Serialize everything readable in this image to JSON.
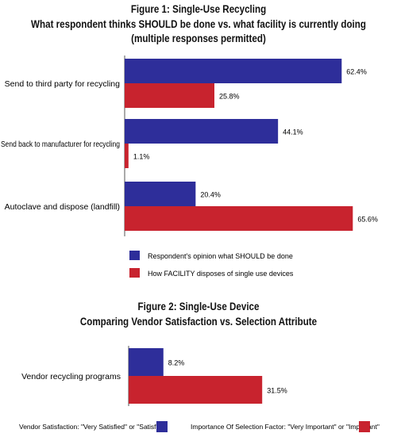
{
  "chart_data": [
    {
      "type": "bar",
      "orientation": "horizontal",
      "title": "Figure 1: Single-Use Recycling",
      "subtitle_line1": "What respondent thinks SHOULD be done vs. what facility is currently doing",
      "subtitle_line2": "(multiple responses permitted)",
      "categories": [
        "Send to third party for recycling",
        "Send back to manufacturer for recycling",
        "Autoclave and dispose (landfill)"
      ],
      "series": [
        {
          "name": "Respondent's opinion what SHOULD be done",
          "color": "#2e2e9a",
          "values": [
            62.4,
            44.1,
            20.4
          ]
        },
        {
          "name": "How FACILITY disposes of single use devices",
          "color": "#c8232e",
          "values": [
            25.8,
            1.1,
            65.6
          ]
        }
      ],
      "value_labels": {
        "s0": [
          "62.4%",
          "44.1%",
          "20.4%"
        ],
        "s1": [
          "25.8%",
          "1.1%",
          "65.6%"
        ]
      },
      "legend_position": "bottom-center",
      "grid": false
    },
    {
      "type": "bar",
      "orientation": "horizontal",
      "title_line1": "Figure 2: Single-Use Device",
      "title_line2": "Comparing Vendor Satisfaction vs. Selection Attribute",
      "categories": [
        "Vendor recycling programs"
      ],
      "series": [
        {
          "name": "Vendor Satisfaction: \"Very Satisfied\" or \"Satisfied\"",
          "color": "#2e2e9a",
          "values": [
            8.2
          ]
        },
        {
          "name": "Importance Of Selection Factor: \"Very Important\" or \"Important\"",
          "color": "#c8232e",
          "values": [
            31.5
          ]
        }
      ],
      "value_labels": {
        "s0": [
          "8.2%"
        ],
        "s1": [
          "31.5%"
        ]
      },
      "legend_position": "bottom",
      "grid": false
    }
  ]
}
